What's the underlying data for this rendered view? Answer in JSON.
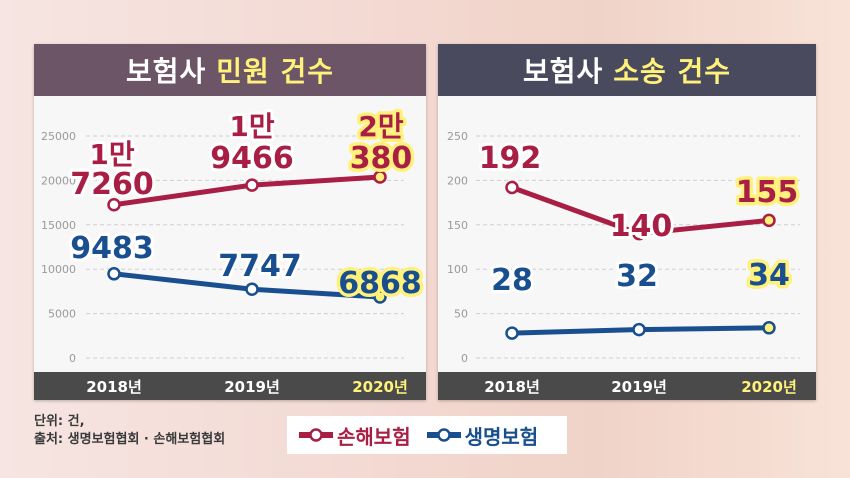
{
  "colors": {
    "damage": "#a81e45",
    "life": "#1a4f8f",
    "highlight": "#fff17a",
    "axis_bar": "#4a4a4a"
  },
  "legend": [
    {
      "name": "손해보험",
      "color": "#a81e45"
    },
    {
      "name": "생명보험",
      "color": "#1a4f8f"
    }
  ],
  "notes": {
    "unit": "단위: 건,",
    "source": "출처: 생명보험협회 · 손해보험협회"
  },
  "chart_data": [
    {
      "type": "line",
      "title_main": "보험사",
      "title_accent": "민원 건수",
      "categories": [
        "2018년",
        "2019년",
        "2020년"
      ],
      "y_ticks": [
        "25000",
        "20000",
        "15000",
        "10000",
        "5000",
        "0"
      ],
      "ylim": [
        0,
        25000
      ],
      "grid": true,
      "series": [
        {
          "name": "손해보험",
          "values": [
            17260,
            19466,
            20380
          ],
          "label_top": [
            "1만",
            "1만",
            "2만"
          ],
          "label_bottom": [
            "7260",
            "9466",
            "380"
          ]
        },
        {
          "name": "생명보험",
          "values": [
            9483,
            7747,
            6868
          ],
          "label_top": [
            "",
            "",
            ""
          ],
          "label_bottom": [
            "9483",
            "7747",
            "6868"
          ]
        }
      ]
    },
    {
      "type": "line",
      "title_main": "보험사",
      "title_accent": "소송 건수",
      "categories": [
        "2018년",
        "2019년",
        "2020년"
      ],
      "y_ticks": [
        "250",
        "200",
        "150",
        "100",
        "50",
        "0"
      ],
      "ylim": [
        0,
        250
      ],
      "grid": true,
      "series": [
        {
          "name": "손해보험",
          "values": [
            192,
            140,
            155
          ],
          "label_top": [
            "",
            "",
            ""
          ],
          "label_bottom": [
            "192",
            "140",
            "155"
          ]
        },
        {
          "name": "생명보험",
          "values": [
            28,
            32,
            34
          ],
          "label_top": [
            "",
            "",
            ""
          ],
          "label_bottom": [
            "28",
            "32",
            "34"
          ]
        }
      ]
    }
  ]
}
